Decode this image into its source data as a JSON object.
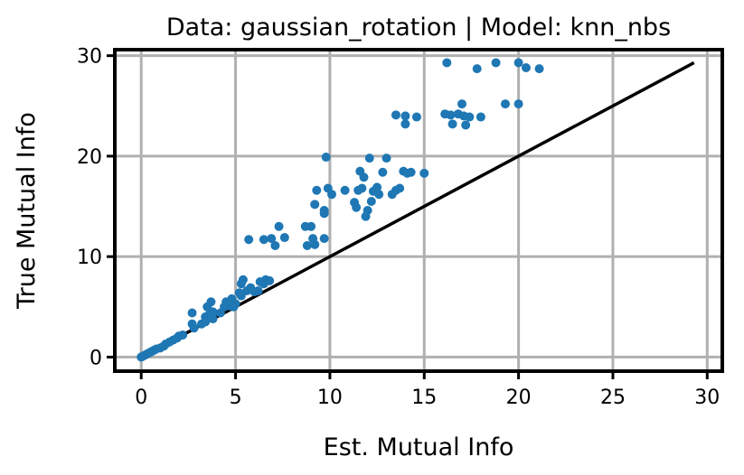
{
  "chart_data": {
    "type": "scatter",
    "title": "Data: gaussian_rotation | Model: knn_nbs",
    "xlabel": "Est. Mutual Info",
    "ylabel": "True Mutual Info",
    "xlim": [
      -1.4,
      30.8
    ],
    "ylim": [
      -1.4,
      30.6
    ],
    "xticks": [
      0,
      5,
      10,
      15,
      20,
      25,
      30
    ],
    "yticks": [
      0,
      10,
      20,
      30
    ],
    "xtick_labels": [
      "0",
      "5",
      "10",
      "15",
      "20",
      "25",
      "30"
    ],
    "ytick_labels": [
      "0",
      "10",
      "20",
      "30"
    ],
    "grid": true,
    "point_color": "#1f77b4",
    "reference_line": {
      "color": "#000000",
      "x": [
        0,
        29.3
      ],
      "y": [
        0,
        29.3
      ]
    },
    "series": [
      {
        "points": [
          [
            0.0,
            0.0
          ],
          [
            0.1,
            0.1
          ],
          [
            0.2,
            0.2
          ],
          [
            0.3,
            0.3
          ],
          [
            0.4,
            0.4
          ],
          [
            0.5,
            0.5
          ],
          [
            0.6,
            0.6
          ],
          [
            0.7,
            0.7
          ],
          [
            0.8,
            0.8
          ],
          [
            1.0,
            0.9
          ],
          [
            1.2,
            1.1
          ],
          [
            1.3,
            1.3
          ],
          [
            1.5,
            1.5
          ],
          [
            1.7,
            1.7
          ],
          [
            1.9,
            1.9
          ],
          [
            2.0,
            2.1
          ],
          [
            2.2,
            2.2
          ],
          [
            2.8,
            2.9
          ],
          [
            2.7,
            3.3
          ],
          [
            3.2,
            3.3
          ],
          [
            2.7,
            4.4
          ],
          [
            3.4,
            4.0
          ],
          [
            3.6,
            4.2
          ],
          [
            3.8,
            4.5
          ],
          [
            3.5,
            5.0
          ],
          [
            3.7,
            5.5
          ],
          [
            3.4,
            3.5
          ],
          [
            3.8,
            3.8
          ],
          [
            4.2,
            4.4
          ],
          [
            4.4,
            5.0
          ],
          [
            4.7,
            5.1
          ],
          [
            4.5,
            5.5
          ],
          [
            4.9,
            5.0
          ],
          [
            5.0,
            5.3
          ],
          [
            4.8,
            5.8
          ],
          [
            5.3,
            6.1
          ],
          [
            5.2,
            6.4
          ],
          [
            5.3,
            7.3
          ],
          [
            5.4,
            7.7
          ],
          [
            5.6,
            6.6
          ],
          [
            5.8,
            6.9
          ],
          [
            6.0,
            6.5
          ],
          [
            6.2,
            6.6
          ],
          [
            6.3,
            7.5
          ],
          [
            6.5,
            7.3
          ],
          [
            6.6,
            7.7
          ],
          [
            6.8,
            7.6
          ],
          [
            5.7,
            11.7
          ],
          [
            6.5,
            11.7
          ],
          [
            6.9,
            11.8
          ],
          [
            7.1,
            11.1
          ],
          [
            7.6,
            11.9
          ],
          [
            7.3,
            13.0
          ],
          [
            8.8,
            11.1
          ],
          [
            9.2,
            11.2
          ],
          [
            9.7,
            11.8
          ],
          [
            9.1,
            11.8
          ],
          [
            9.0,
            13.0
          ],
          [
            8.7,
            13.0
          ],
          [
            9.2,
            15.2
          ],
          [
            9.3,
            16.6
          ],
          [
            9.7,
            14.3
          ],
          [
            9.7,
            14.6
          ],
          [
            9.9,
            16.8
          ],
          [
            10.1,
            16.2
          ],
          [
            9.8,
            19.9
          ],
          [
            10.8,
            16.6
          ],
          [
            11.3,
            15.4
          ],
          [
            11.4,
            14.9
          ],
          [
            11.5,
            16.6
          ],
          [
            11.7,
            16.8
          ],
          [
            11.9,
            14.0
          ],
          [
            12.0,
            14.6
          ],
          [
            12.2,
            15.5
          ],
          [
            12.3,
            16.5
          ],
          [
            12.5,
            16.9
          ],
          [
            12.6,
            16.2
          ],
          [
            11.6,
            18.5
          ],
          [
            11.8,
            17.9
          ],
          [
            12.1,
            19.8
          ],
          [
            12.8,
            18.4
          ],
          [
            13.0,
            19.8
          ],
          [
            13.3,
            16.2
          ],
          [
            13.5,
            16.6
          ],
          [
            13.7,
            16.8
          ],
          [
            13.9,
            18.5
          ],
          [
            14.1,
            18.3
          ],
          [
            14.3,
            18.4
          ],
          [
            15.0,
            18.3
          ],
          [
            13.5,
            24.1
          ],
          [
            14.0,
            24.0
          ],
          [
            14.0,
            23.2
          ],
          [
            14.6,
            23.9
          ],
          [
            16.1,
            24.2
          ],
          [
            16.4,
            24.1
          ],
          [
            16.5,
            23.2
          ],
          [
            16.2,
            29.3
          ],
          [
            16.8,
            24.2
          ],
          [
            17.0,
            25.2
          ],
          [
            17.1,
            24.0
          ],
          [
            17.2,
            23.1
          ],
          [
            17.4,
            23.9
          ],
          [
            18.0,
            23.9
          ],
          [
            17.8,
            28.7
          ],
          [
            18.8,
            29.3
          ],
          [
            19.3,
            25.2
          ],
          [
            20.0,
            29.3
          ],
          [
            20.0,
            25.2
          ],
          [
            20.4,
            28.8
          ],
          [
            21.1,
            28.7
          ]
        ]
      }
    ]
  }
}
